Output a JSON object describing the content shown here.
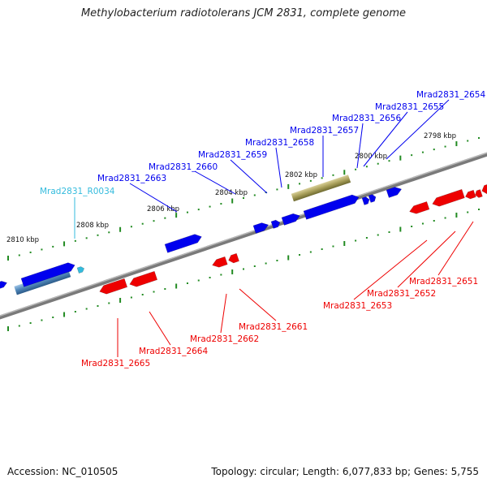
{
  "title": "Methylobacterium radiotolerans JCM 2831, complete genome",
  "accession": "Accession: NC_010505",
  "topology": "Topology: circular; Length: 6,077,833 bp; Genes: 5,755",
  "colors": {
    "forward_gene": "#0000ee",
    "reverse_gene": "#ee0000",
    "rna_label": "#33bbdd",
    "tick": "#228b22",
    "backbone": "#888888"
  },
  "kbp_labels": [
    "2810 kbp",
    "2808 kbp",
    "2806 kbp",
    "2804 kbp",
    "2802 kbp",
    "2800 kbp",
    "2798 kbp"
  ],
  "forward_labels": [
    "Mrad2831_R0034",
    "Mrad2831_2663",
    "Mrad2831_2660",
    "Mrad2831_2659",
    "Mrad2831_2658",
    "Mrad2831_2657",
    "Mrad2831_2656",
    "Mrad2831_2655",
    "Mrad2831_2654"
  ],
  "reverse_labels": [
    "Mrad2831_2665",
    "Mrad2831_2664",
    "Mrad2831_2662",
    "Mrad2831_2661",
    "Mrad2831_2653",
    "Mrad2831_2652",
    "Mrad2831_2651"
  ]
}
